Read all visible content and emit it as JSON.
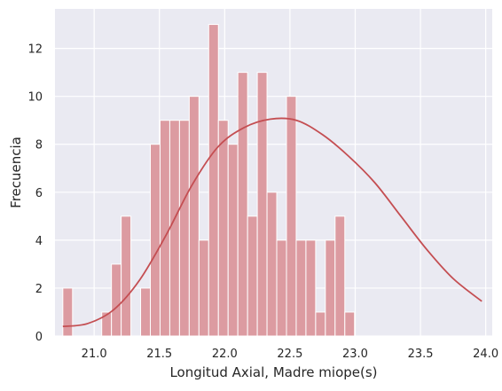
{
  "chart_data": {
    "type": "bar",
    "xlabel": "Longitud Axial, Madre miope(s)",
    "ylabel": "Frecuencia",
    "xlim": [
      20.7,
      24.05
    ],
    "ylim": [
      0,
      13.65
    ],
    "grid": true,
    "x_ticks": [
      21.0,
      21.5,
      22.0,
      22.5,
      23.0,
      23.5,
      24.0
    ],
    "x_tick_labels": [
      "21.0",
      "21.5",
      "22.0",
      "22.5",
      "23.0",
      "23.5",
      "24.0"
    ],
    "y_ticks": [
      0,
      2,
      4,
      6,
      8,
      10,
      12
    ],
    "y_tick_labels": [
      "0",
      "2",
      "4",
      "6",
      "8",
      "10",
      "12"
    ],
    "bins": {
      "start": 20.76,
      "width": 0.0745,
      "counts": [
        2,
        0,
        0,
        0,
        1,
        3,
        5,
        0,
        2,
        8,
        9,
        9,
        9,
        10,
        4,
        13,
        9,
        8,
        11,
        5,
        11,
        6,
        4,
        10,
        4,
        4,
        1,
        4,
        5,
        1
      ]
    },
    "kde": {
      "x": [
        20.76,
        20.95,
        21.15,
        21.35,
        21.55,
        21.75,
        21.95,
        22.15,
        22.35,
        22.55,
        22.75,
        22.95,
        23.15,
        23.35,
        23.55,
        23.75,
        23.97
      ],
      "y": [
        0.4,
        0.52,
        1.1,
        2.35,
        4.2,
        6.3,
        7.9,
        8.7,
        9.05,
        9.0,
        8.4,
        7.5,
        6.4,
        5.0,
        3.6,
        2.4,
        1.45
      ]
    },
    "colors": {
      "bar": "#dc9ba1",
      "bar_edge": "#ffffff",
      "kde": "#c44e52",
      "plot_bg": "#eaeaf2",
      "grid": "#ffffff"
    }
  }
}
